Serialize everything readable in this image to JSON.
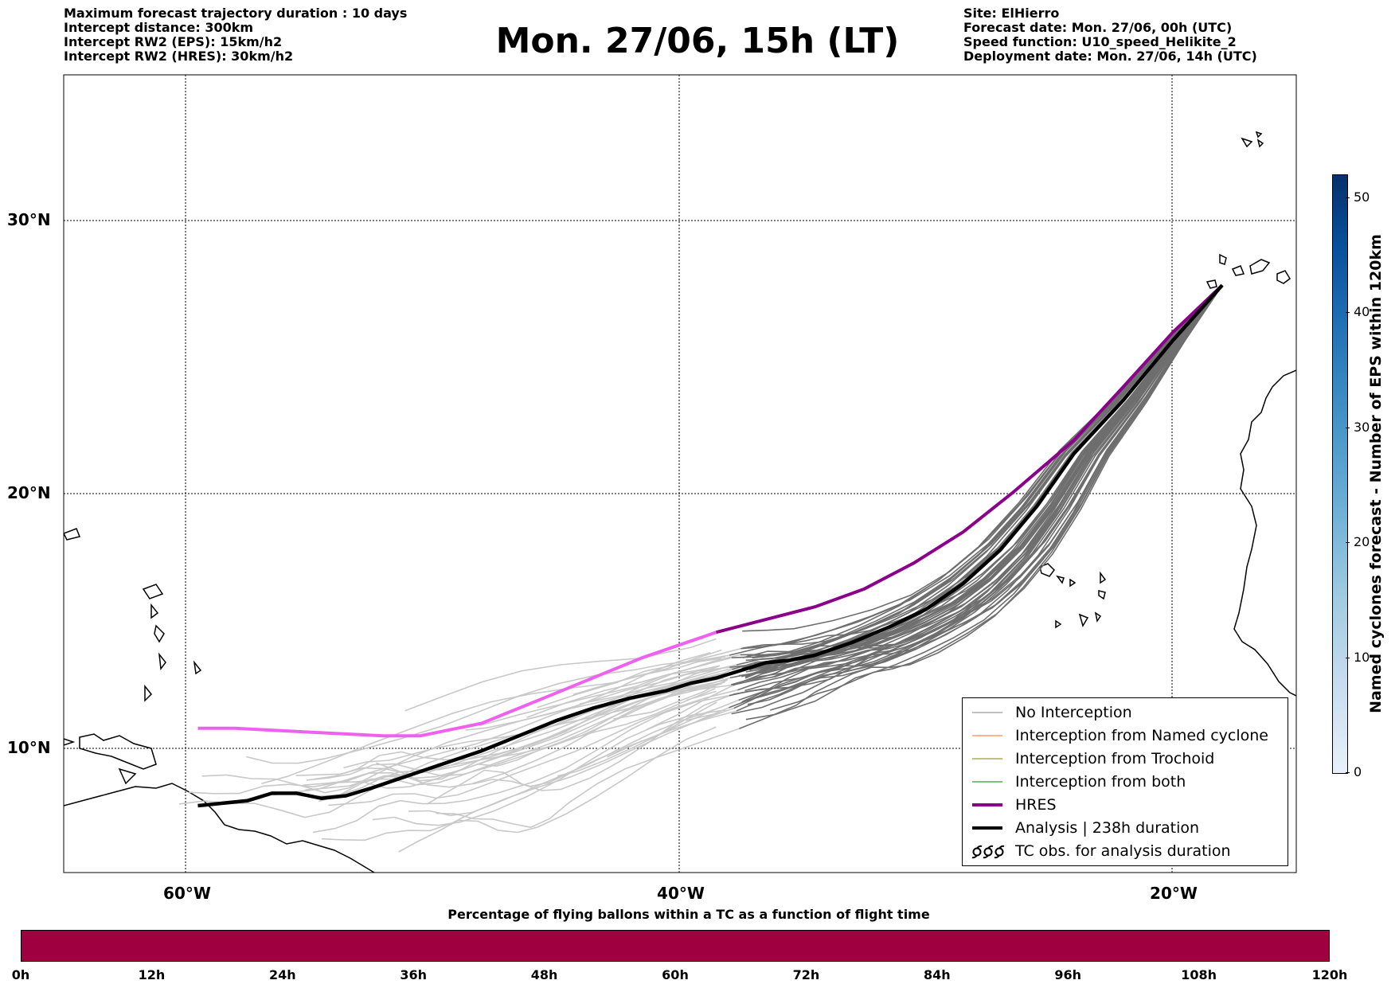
{
  "header_left": [
    "Maximum forecast trajectory duration : 10 days",
    "Intercept distance: 300km",
    "Intercept RW2 (EPS):  15km/h2",
    "Intercept RW2 (HRES): 30km/h2"
  ],
  "header_right": [
    "Site: ElHierro",
    "Forecast date: Mon. 27/06, 00h (UTC)",
    "Speed function: U10_speed_Helikite_2",
    "Deployment date: Mon. 27/06, 14h (UTC)"
  ],
  "title": "Mon. 27/06, 15h (LT)",
  "map": {
    "lat_labels": [
      "30°N",
      "20°N",
      "10°N"
    ],
    "lon_labels": [
      "60°W",
      "40°W",
      "20°W"
    ],
    "gridlines": "dotted",
    "extent": {
      "lon_min": -65,
      "lon_max": -15,
      "lat_min": 5.4,
      "lat_max": 35.3
    }
  },
  "legend": {
    "items": [
      {
        "label": "No Interception",
        "color": "#808080"
      },
      {
        "label": "Interception from Named cyclone",
        "color": "#ff6a1a"
      },
      {
        "label": "Interception from Trochoid",
        "color": "#808000"
      },
      {
        "label": "Interception from both",
        "color": "#008000"
      },
      {
        "label": "HRES",
        "color": "#8b008b"
      },
      {
        "label": "Analysis | 238h duration",
        "color": "#000000"
      },
      {
        "label": "TC obs. for analysis duration",
        "icon": "tc-symbols-icon"
      }
    ]
  },
  "colorbar": {
    "label": "Named cyclones forecast - Number of EPS within 120km",
    "ticks": [
      "0",
      "10",
      "20",
      "30",
      "40",
      "50"
    ],
    "max": 52
  },
  "time_bar": {
    "title": "Percentage of flying ballons within a TC as a function of flight time",
    "ticks": [
      "0h",
      "12h",
      "24h",
      "36h",
      "48h",
      "60h",
      "72h",
      "84h",
      "96h",
      "108h",
      "120h"
    ],
    "color": "#9f0040"
  },
  "trajectories": {
    "site": {
      "lon": -18,
      "lat": 27.7
    },
    "hres": [
      [
        -18,
        27.7
      ],
      [
        -20,
        26
      ],
      [
        -22,
        24
      ],
      [
        -24,
        22
      ],
      [
        -26.5,
        20
      ],
      [
        -28.5,
        18.5
      ],
      [
        -30.5,
        17.3
      ],
      [
        -32.5,
        16.3
      ],
      [
        -34.5,
        15.6
      ],
      [
        -36.5,
        15.1
      ],
      [
        -38.5,
        14.6
      ],
      [
        -40,
        14.1
      ],
      [
        -41.5,
        13.6
      ],
      [
        -43,
        13
      ],
      [
        -44.5,
        12.4
      ],
      [
        -46,
        11.8
      ],
      [
        -47,
        11.4
      ],
      [
        -48,
        11
      ],
      [
        -49,
        10.8
      ],
      [
        -50.5,
        10.5
      ],
      [
        -52,
        10.5
      ],
      [
        -54,
        10.6
      ],
      [
        -56,
        10.7
      ],
      [
        -58,
        10.8
      ],
      [
        -59.5,
        10.8
      ]
    ],
    "analysis": [
      [
        -18,
        27.7
      ],
      [
        -20,
        25.7
      ],
      [
        -22,
        23.5
      ],
      [
        -24,
        21.5
      ],
      [
        -25.5,
        19.5
      ],
      [
        -27,
        17.8
      ],
      [
        -28.5,
        16.5
      ],
      [
        -30,
        15.5
      ],
      [
        -31.5,
        14.8
      ],
      [
        -33,
        14.2
      ],
      [
        -34.5,
        13.7
      ],
      [
        -35.5,
        13.5
      ],
      [
        -36.5,
        13.4
      ],
      [
        -37.5,
        13.1
      ],
      [
        -38.5,
        12.8
      ],
      [
        -39.5,
        12.6
      ],
      [
        -40.5,
        12.3
      ],
      [
        -42,
        12
      ],
      [
        -43.5,
        11.6
      ],
      [
        -45,
        11.1
      ],
      [
        -46.5,
        10.5
      ],
      [
        -48,
        9.9
      ],
      [
        -49.5,
        9.4
      ],
      [
        -51,
        8.9
      ],
      [
        -52.5,
        8.4
      ],
      [
        -53.5,
        8.1
      ],
      [
        -54.5,
        8
      ],
      [
        -55.5,
        8.2
      ],
      [
        -56.5,
        8.2
      ],
      [
        -57.5,
        7.9
      ],
      [
        -58.5,
        7.8
      ],
      [
        -59.5,
        7.7
      ]
    ]
  }
}
